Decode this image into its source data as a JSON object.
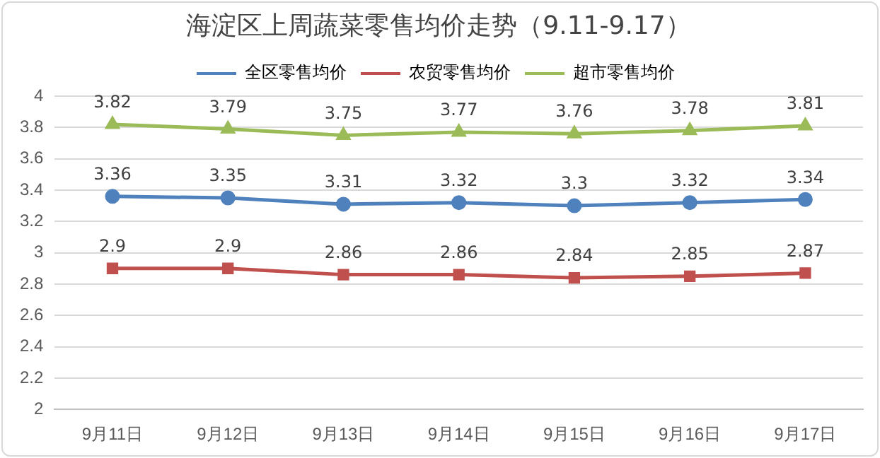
{
  "chart_data": {
    "type": "line",
    "title": "海淀区上周蔬菜零售均价走势（9.11-9.17）",
    "categories": [
      "9月11日",
      "9月12日",
      "9月13日",
      "9月14日",
      "9月15日",
      "9月16日",
      "9月17日"
    ],
    "series": [
      {
        "name": "全区零售均价",
        "color": "#4f81bd",
        "marker": "circle",
        "values": [
          3.36,
          3.35,
          3.31,
          3.32,
          3.3,
          3.32,
          3.34
        ]
      },
      {
        "name": "农贸零售均价",
        "color": "#c0504d",
        "marker": "square",
        "values": [
          2.9,
          2.9,
          2.86,
          2.86,
          2.84,
          2.85,
          2.87
        ]
      },
      {
        "name": "超市零售均价",
        "color": "#9bbb59",
        "marker": "triangle",
        "values": [
          3.82,
          3.79,
          3.75,
          3.77,
          3.76,
          3.78,
          3.81
        ]
      }
    ],
    "ylim": [
      2,
      4
    ],
    "yticks": [
      2,
      2.2,
      2.4,
      2.6,
      2.8,
      3,
      3.2,
      3.4,
      3.6,
      3.8,
      4
    ],
    "grid": "y",
    "legend": "top",
    "data_labels": true,
    "line_style": "solid"
  }
}
